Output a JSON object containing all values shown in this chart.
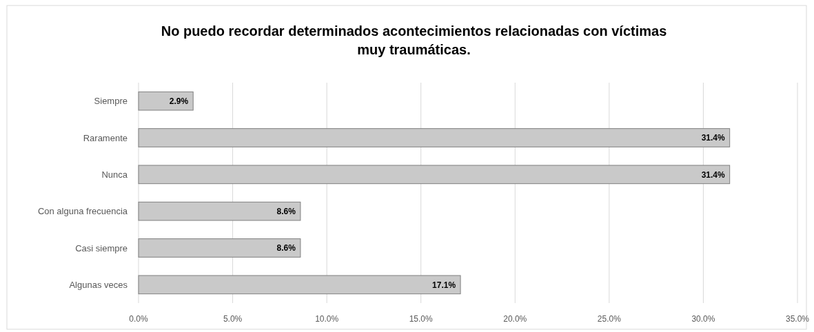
{
  "chart_data": {
    "type": "bar",
    "orientation": "horizontal",
    "title": "No puedo recordar determinados acontecimientos relacionadas con víctimas muy traumáticas.",
    "categories": [
      "Siempre",
      "Raramente",
      "Nunca",
      "Con alguna frecuencia",
      "Casi siempre",
      "Algunas veces"
    ],
    "values": [
      2.9,
      31.4,
      31.4,
      8.6,
      8.6,
      17.1
    ],
    "value_labels": [
      "2.9%",
      "31.4%",
      "31.4%",
      "8.6%",
      "8.6%",
      "17.1%"
    ],
    "color": "#c9c9c9",
    "xlim": [
      0,
      35
    ],
    "xticks": [
      {
        "value": 0,
        "label": "0.0%"
      },
      {
        "value": 5,
        "label": "5.0%"
      },
      {
        "value": 10,
        "label": "10.0%"
      },
      {
        "value": 15,
        "label": "15.0%"
      },
      {
        "value": 20,
        "label": "20.0%"
      },
      {
        "value": 25,
        "label": "25.0%"
      },
      {
        "value": 30,
        "label": "30.0%"
      },
      {
        "value": 35,
        "label": "35.0%"
      }
    ],
    "grid": "x"
  }
}
